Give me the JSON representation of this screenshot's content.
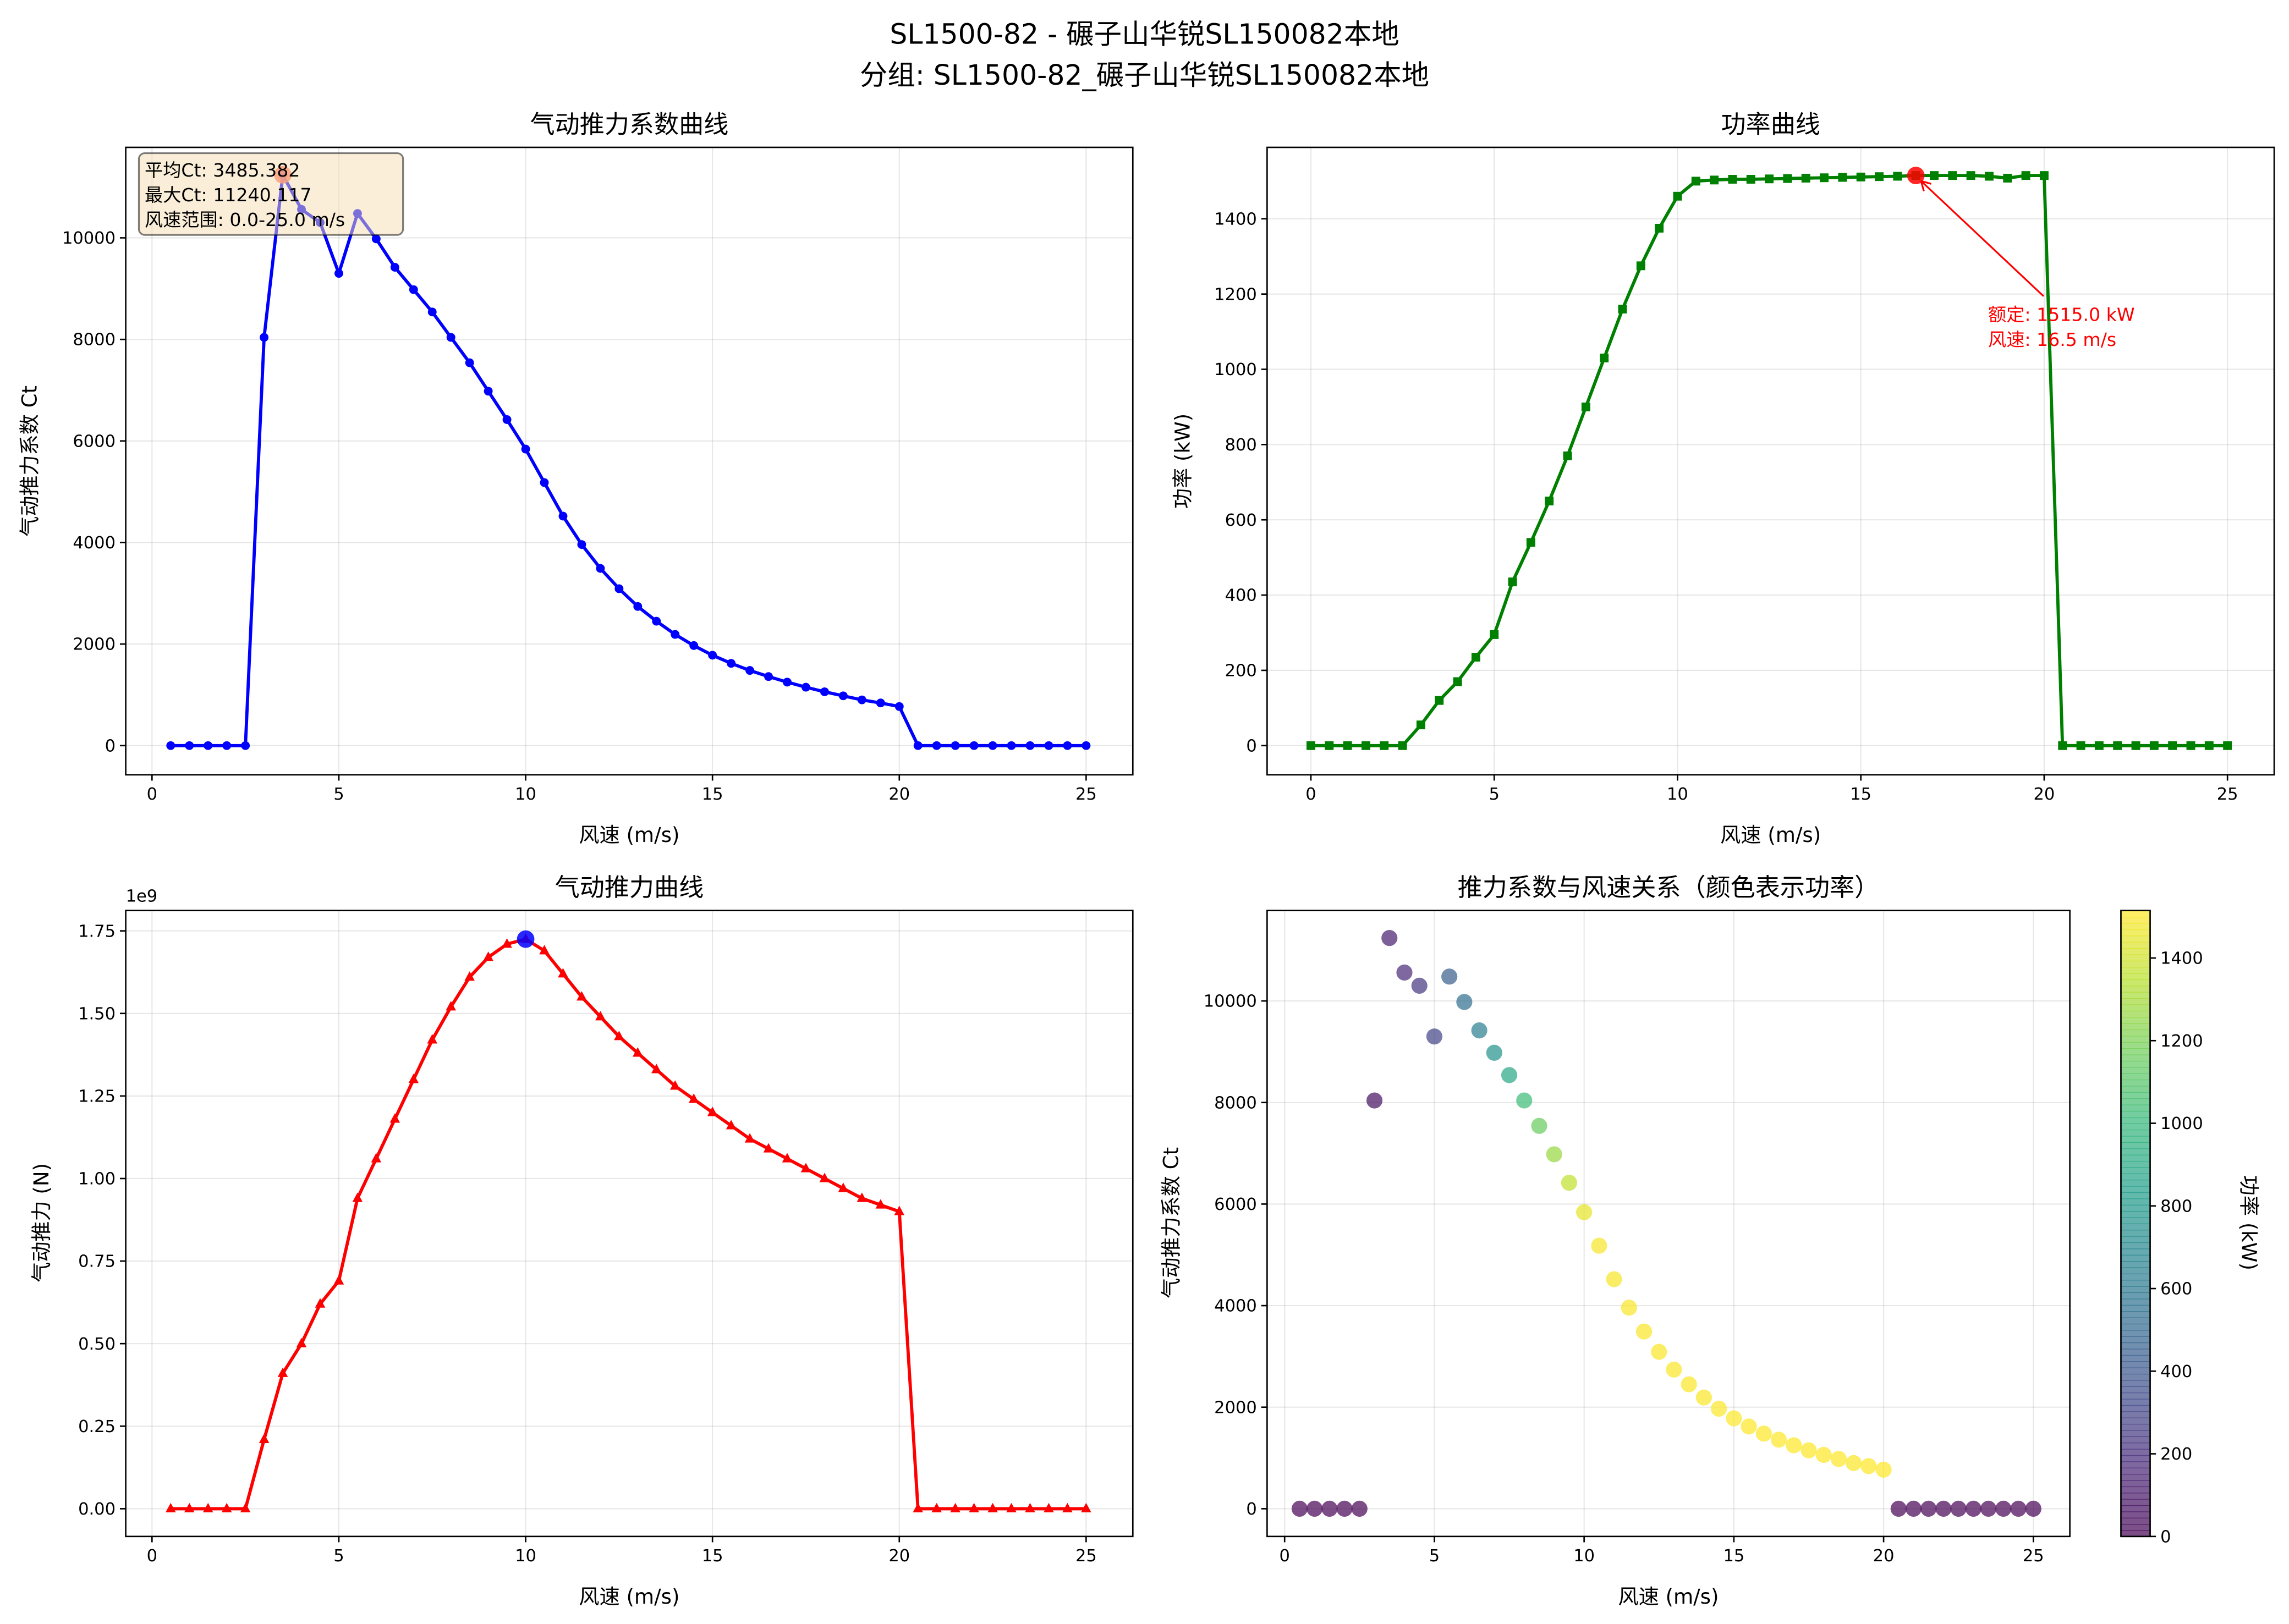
{
  "figure": {
    "title_line1": "SL1500-82 - 碾子山华锐SL150082本地",
    "title_line2": "分组: SL1500-82_碾子山华锐SL150082本地"
  },
  "chart_data": [
    {
      "type": "line",
      "title": "气动推力系数曲线",
      "xlabel": "风速 (m/s)",
      "ylabel": "气动推力系数 Ct",
      "xticks": [
        "0",
        "5",
        "10",
        "15",
        "20",
        "25"
      ],
      "yticks": [
        "0",
        "2000",
        "4000",
        "6000",
        "8000",
        "10000"
      ],
      "grid": true,
      "color": "#0000ff",
      "marker": "circle",
      "x": [
        0.5,
        1,
        1.5,
        2,
        2.5,
        3,
        3.5,
        4,
        4.5,
        5,
        5.5,
        6,
        6.5,
        7,
        7.5,
        8,
        8.5,
        9,
        9.5,
        10,
        10.5,
        11,
        11.5,
        12,
        12.5,
        13,
        13.5,
        14,
        14.5,
        15,
        15.5,
        16,
        16.5,
        17,
        17.5,
        18,
        18.5,
        19,
        19.5,
        20,
        20.5,
        21,
        21.5,
        22,
        22.5,
        23,
        23.5,
        24,
        24.5,
        25
      ],
      "y": [
        0,
        0,
        0,
        0,
        0,
        8040,
        11240,
        10560,
        10300,
        9300,
        10480,
        9980,
        9420,
        8980,
        8540,
        8040,
        7540,
        6980,
        6420,
        5840,
        5180,
        4520,
        3960,
        3490,
        3090,
        2740,
        2450,
        2190,
        1970,
        1780,
        1620,
        1480,
        1360,
        1250,
        1150,
        1060,
        980,
        900,
        840,
        770,
        0,
        0,
        0,
        0,
        0,
        0,
        0,
        0,
        0,
        0
      ],
      "highlight": {
        "x": 3.5,
        "y": 11240.117,
        "color": "#ff6347"
      },
      "stats_box": [
        "平均Ct: 3485.382",
        "最大Ct: 11240.117",
        "风速范围: 0.0-25.0 m/s"
      ]
    },
    {
      "type": "line",
      "title": "功率曲线",
      "xlabel": "风速 (m/s)",
      "ylabel": "功率 (kW)",
      "xticks": [
        "0",
        "5",
        "10",
        "15",
        "20",
        "25"
      ],
      "yticks": [
        "0",
        "200",
        "400",
        "600",
        "800",
        "1000",
        "1200",
        "1400"
      ],
      "grid": true,
      "color": "#008000",
      "marker": "square",
      "x": [
        0,
        0.5,
        1,
        1.5,
        2,
        2.5,
        3,
        3.5,
        4,
        4.5,
        5,
        5.5,
        6,
        6.5,
        7,
        7.5,
        8,
        8.5,
        9,
        9.5,
        10,
        10.5,
        11,
        11.5,
        12,
        12.5,
        13,
        13.5,
        14,
        14.5,
        15,
        15.5,
        16,
        16.5,
        17,
        17.5,
        18,
        18.5,
        19,
        19.5,
        20,
        20.5,
        21,
        21.5,
        22,
        22.5,
        23,
        23.5,
        24,
        24.5,
        25
      ],
      "y": [
        0,
        0,
        0,
        0,
        0,
        0,
        55,
        120,
        170,
        235,
        295,
        435,
        540,
        650,
        770,
        900,
        1030,
        1160,
        1275,
        1375,
        1460,
        1500,
        1503,
        1505,
        1505,
        1506,
        1507,
        1508,
        1509,
        1510,
        1511,
        1512,
        1513,
        1515,
        1515,
        1515,
        1515,
        1513,
        1508,
        1515,
        1515,
        0,
        0,
        0,
        0,
        0,
        0,
        0,
        0,
        0,
        0
      ],
      "highlight": {
        "x": 16.5,
        "y": 1515.0,
        "color": "#ff0000"
      },
      "annotation": [
        "额定: 1515.0 kW",
        "风速: 16.5 m/s"
      ]
    },
    {
      "type": "line",
      "title": "气动推力曲线",
      "xlabel": "风速 (m/s)",
      "ylabel": "气动推力 (N)",
      "y_offset_label": "1e9",
      "xticks": [
        "0",
        "5",
        "10",
        "15",
        "20",
        "25"
      ],
      "yticks": [
        "0.00",
        "0.25",
        "0.50",
        "0.75",
        "1.00",
        "1.25",
        "1.50",
        "1.75"
      ],
      "grid": true,
      "color": "#ff0000",
      "marker": "triangle",
      "x": [
        0.5,
        1,
        1.5,
        2,
        2.5,
        3,
        3.5,
        4,
        4.5,
        5,
        5.5,
        6,
        6.5,
        7,
        7.5,
        8,
        8.5,
        9,
        9.5,
        10,
        10.5,
        11,
        11.5,
        12,
        12.5,
        13,
        13.5,
        14,
        14.5,
        15,
        15.5,
        16,
        16.5,
        17,
        17.5,
        18,
        18.5,
        19,
        19.5,
        20,
        20.5,
        21,
        21.5,
        22,
        22.5,
        23,
        23.5,
        24,
        24.5,
        25
      ],
      "y": [
        0,
        0,
        0,
        0,
        0,
        0.21,
        0.41,
        0.5,
        0.62,
        0.69,
        0.94,
        1.06,
        1.18,
        1.3,
        1.42,
        1.52,
        1.61,
        1.67,
        1.71,
        1.725,
        1.69,
        1.62,
        1.55,
        1.49,
        1.43,
        1.38,
        1.33,
        1.28,
        1.24,
        1.2,
        1.16,
        1.12,
        1.09,
        1.06,
        1.03,
        1.0,
        0.97,
        0.94,
        0.92,
        0.9,
        0,
        0,
        0,
        0,
        0,
        0,
        0,
        0,
        0,
        0
      ],
      "highlight": {
        "x": 10,
        "y": 1.725,
        "color": "#0000ff"
      }
    },
    {
      "type": "scatter",
      "title": "推力系数与风速关系（颜色表示功率）",
      "xlabel": "风速 (m/s)",
      "ylabel": "气动推力系数 Ct",
      "xticks": [
        "0",
        "5",
        "10",
        "15",
        "20",
        "25"
      ],
      "yticks": [
        "0",
        "2000",
        "4000",
        "6000",
        "8000",
        "10000"
      ],
      "grid": true,
      "colormap": "viridis",
      "colorbar": {
        "label": "功率 (kW)",
        "ticks": [
          "0",
          "200",
          "400",
          "600",
          "800",
          "1000",
          "1200",
          "1400"
        ],
        "range": [
          0,
          1515
        ]
      },
      "x": [
        0.5,
        1,
        1.5,
        2,
        2.5,
        3,
        3.5,
        4,
        4.5,
        5,
        5.5,
        6,
        6.5,
        7,
        7.5,
        8,
        8.5,
        9,
        9.5,
        10,
        10.5,
        11,
        11.5,
        12,
        12.5,
        13,
        13.5,
        14,
        14.5,
        15,
        15.5,
        16,
        16.5,
        17,
        17.5,
        18,
        18.5,
        19,
        19.5,
        20,
        20.5,
        21,
        21.5,
        22,
        22.5,
        23,
        23.5,
        24,
        24.5,
        25
      ],
      "y": [
        0,
        0,
        0,
        0,
        0,
        8040,
        11240,
        10560,
        10300,
        9300,
        10480,
        9980,
        9420,
        8980,
        8540,
        8040,
        7540,
        6980,
        6420,
        5840,
        5180,
        4520,
        3960,
        3490,
        3090,
        2740,
        2450,
        2190,
        1970,
        1780,
        1620,
        1480,
        1360,
        1250,
        1150,
        1060,
        980,
        900,
        840,
        770,
        0,
        0,
        0,
        0,
        0,
        0,
        0,
        0,
        0,
        0
      ],
      "color_values": [
        0,
        0,
        0,
        0,
        0,
        55,
        120,
        170,
        235,
        295,
        435,
        540,
        650,
        770,
        900,
        1030,
        1160,
        1275,
        1375,
        1460,
        1500,
        1503,
        1505,
        1505,
        1506,
        1507,
        1508,
        1509,
        1510,
        1511,
        1512,
        1513,
        1515,
        1515,
        1515,
        1515,
        1513,
        1508,
        1515,
        1515,
        0,
        0,
        0,
        0,
        0,
        0,
        0,
        0,
        0,
        0
      ]
    }
  ]
}
